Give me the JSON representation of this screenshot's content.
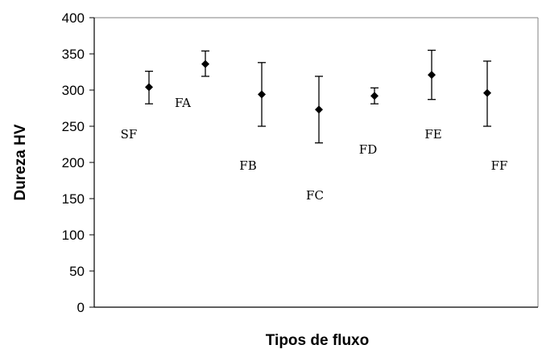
{
  "chart_data": {
    "type": "scatter",
    "xlabel": "Tipos de fluxo",
    "ylabel": "Dureza HV",
    "ylim": [
      0,
      400
    ],
    "yticks": [
      "0",
      "50",
      "100",
      "150",
      "200",
      "250",
      "300",
      "350",
      "400"
    ],
    "grid": false,
    "legend": "none",
    "points": [
      {
        "label": "SF",
        "mean": 304,
        "err_low": 281,
        "err_high": 326
      },
      {
        "label": "FA",
        "mean": 336,
        "err_low": 319,
        "err_high": 354
      },
      {
        "label": "FB",
        "mean": 294,
        "err_low": 250,
        "err_high": 338
      },
      {
        "label": "FC",
        "mean": 273,
        "err_low": 227,
        "err_high": 319
      },
      {
        "label": "FD",
        "mean": 292,
        "err_low": 281,
        "err_high": 303
      },
      {
        "label": "FE",
        "mean": 321,
        "err_low": 287,
        "err_high": 355
      },
      {
        "label": "FF",
        "mean": 296,
        "err_low": 250,
        "err_high": 340
      }
    ],
    "colors": {
      "marker": "#000000",
      "axis": "#000000",
      "frame": "#808080"
    }
  }
}
